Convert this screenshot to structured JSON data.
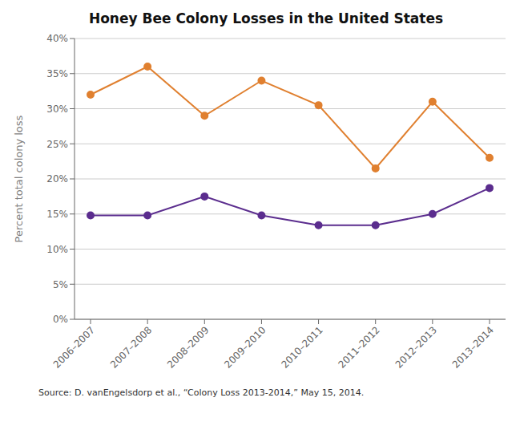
{
  "chart_data": {
    "type": "line",
    "title": "Honey Bee Colony Losses in the United States",
    "ylabel": "Percent total colony loss",
    "source": "Source: D. vanEngelsdorp et al., “Colony Loss 2013-2014,” May 15, 2014.",
    "categories": [
      "2006–2007",
      "2007–2008",
      "2008–2009",
      "2009–2010",
      "2010–2011",
      "2011–2012",
      "2012–2013",
      "2013–2014"
    ],
    "series": [
      {
        "color": "#E08030",
        "marker": "circle",
        "values": [
          0.32,
          0.36,
          0.29,
          0.34,
          0.305,
          0.215,
          0.31,
          0.23
        ]
      },
      {
        "color": "#5B2D8E",
        "marker": "circle",
        "values": [
          0.148,
          0.148,
          0.175,
          0.148,
          0.134,
          0.134,
          0.15,
          0.187
        ]
      }
    ],
    "ylim": [
      0,
      0.4
    ],
    "yticks": [
      {
        "value": 0,
        "label": "0%"
      },
      {
        "value": 0.05,
        "label": "5%"
      },
      {
        "value": 0.1,
        "label": "10%"
      },
      {
        "value": 0.15,
        "label": "15%"
      },
      {
        "value": 0.2,
        "label": "20%"
      },
      {
        "value": 0.25,
        "label": "25%"
      },
      {
        "value": 0.3,
        "label": "30%"
      },
      {
        "value": 0.35,
        "label": "35%"
      },
      {
        "value": 0.4,
        "label": "40%"
      }
    ],
    "grid": true
  }
}
